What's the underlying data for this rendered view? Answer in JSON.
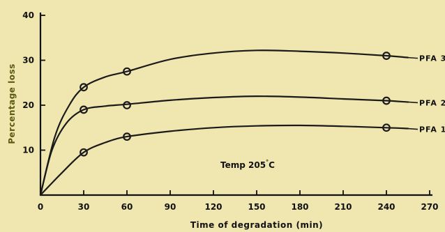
{
  "chart_data": {
    "type": "line",
    "xlabel": "Time  of  degradation (min)",
    "ylabel": "Percentage  loss",
    "xlim": [
      0,
      270
    ],
    "ylim": [
      0,
      40
    ],
    "x_ticks": [
      0,
      30,
      60,
      90,
      120,
      150,
      180,
      210,
      240,
      270
    ],
    "y_ticks": [
      10,
      20,
      30,
      40
    ],
    "grid": false,
    "annotation": {
      "text": "Temp  205",
      "sup": "°",
      "suffix": "C"
    },
    "series": [
      {
        "name": "PFA 3",
        "points": [
          [
            30,
            24
          ],
          [
            60,
            27.5
          ],
          [
            240,
            31
          ]
        ],
        "curve": [
          [
            0,
            0
          ],
          [
            10,
            13
          ],
          [
            20,
            20
          ],
          [
            30,
            24
          ],
          [
            45,
            26.3
          ],
          [
            60,
            27.5
          ],
          [
            90,
            30.2
          ],
          [
            120,
            31.6
          ],
          [
            150,
            32.2
          ],
          [
            180,
            32.0
          ],
          [
            210,
            31.6
          ],
          [
            240,
            31.0
          ],
          [
            255,
            30.6
          ]
        ]
      },
      {
        "name": "PFA 2",
        "points": [
          [
            30,
            19
          ],
          [
            60,
            20
          ],
          [
            240,
            21
          ]
        ],
        "curve": [
          [
            0,
            0
          ],
          [
            8,
            10
          ],
          [
            18,
            16
          ],
          [
            30,
            19
          ],
          [
            45,
            19.8
          ],
          [
            60,
            20.2
          ],
          [
            90,
            21.1
          ],
          [
            120,
            21.7
          ],
          [
            150,
            22.0
          ],
          [
            180,
            21.8
          ],
          [
            210,
            21.4
          ],
          [
            240,
            21.0
          ],
          [
            255,
            20.7
          ]
        ]
      },
      {
        "name": "PFA 1",
        "points": [
          [
            30,
            9.5
          ],
          [
            60,
            13
          ],
          [
            240,
            15
          ]
        ],
        "curve": [
          [
            0,
            0
          ],
          [
            15,
            5
          ],
          [
            30,
            9.5
          ],
          [
            45,
            11.7
          ],
          [
            60,
            13.0
          ],
          [
            90,
            14.2
          ],
          [
            120,
            15.0
          ],
          [
            150,
            15.4
          ],
          [
            180,
            15.5
          ],
          [
            210,
            15.3
          ],
          [
            240,
            15.0
          ],
          [
            255,
            14.8
          ]
        ]
      }
    ]
  }
}
